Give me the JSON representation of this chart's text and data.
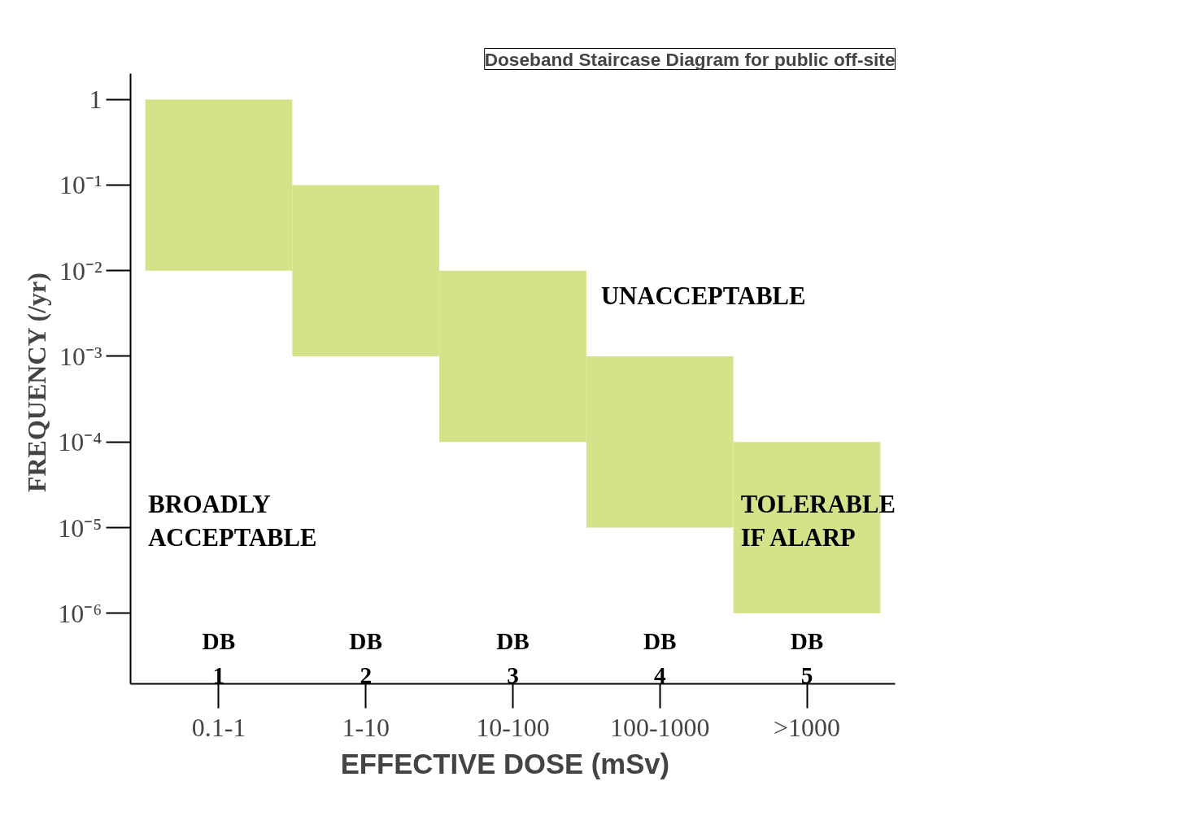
{
  "chart_data": {
    "type": "bar",
    "title": "Doseband Staircase Diagram for public off-site",
    "xlabel": "EFFECTIVE DOSE   (mSv)",
    "ylabel": "FREQUENCY  (/yr)",
    "categories": [
      "0.1-1",
      "1-10",
      "10-100",
      "100-1000",
      ">1000"
    ],
    "values": [
      0.99,
      0.099,
      0.0099,
      0.00099,
      9.9e-05
    ],
    "base": [
      0.01,
      0.001,
      0.0001,
      1e-05,
      1e-06
    ],
    "color": "#d4e38a",
    "log": "y",
    "ylim": [
      1.5e-07,
      2
    ],
    "yticks": [
      {
        "value": 1,
        "label": "1"
      },
      {
        "value": 0.1,
        "label": "10⁻¹"
      },
      {
        "value": 0.01,
        "label": "10⁻²"
      },
      {
        "value": 0.001,
        "label": "10⁻³"
      },
      {
        "value": 0.0001,
        "label": "10⁻⁴"
      },
      {
        "value": 1e-05,
        "label": "10⁻⁵"
      },
      {
        "value": 1e-06,
        "label": "10⁻⁶"
      }
    ],
    "annotations": [
      "UNACCEPTABLE",
      "BROADLY\nACCEPTABLE",
      "TOLERABLE\nIF ALARP",
      "DB\n1",
      "DB\n2",
      "DB\n3",
      "DB\n4",
      "DB\n5"
    ],
    "grid": false
  }
}
